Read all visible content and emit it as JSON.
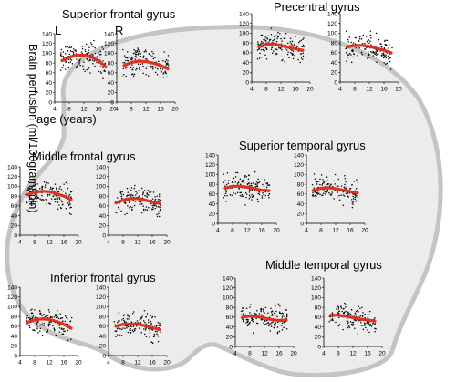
{
  "figure": {
    "ylabel": "Brain perfusion (ml/100gram/min)",
    "xlabel": "age (years)",
    "left_label": "L",
    "right_label": "R"
  },
  "colors": {
    "points": "#000000",
    "fit": "#e03020",
    "brain_fill": "#ececec",
    "brain_stroke": "#c4c4c4"
  },
  "chart_data": [
    {
      "type": "scatter",
      "region": "Superior frontal gyrus",
      "title": "Superior frontal gyrus",
      "xlim": [
        4,
        20
      ],
      "ylim": [
        0,
        140
      ],
      "xticks": [
        "4",
        "8",
        "12",
        "16",
        "20"
      ],
      "yticks": [
        "0",
        "20",
        "40",
        "60",
        "80",
        "100",
        "120",
        "140"
      ],
      "series": [
        {
          "hemisphere": "L",
          "fit": {
            "x": [
              6,
              8,
              10,
              12,
              14,
              16,
              18
            ],
            "y": [
              85,
              92,
              96,
              96,
              93,
              85,
              72
            ]
          }
        },
        {
          "hemisphere": "R",
          "fit": {
            "x": [
              6,
              8,
              10,
              12,
              14,
              16,
              18
            ],
            "y": [
              75,
              81,
              84,
              83,
              80,
              75,
              68
            ]
          }
        }
      ]
    },
    {
      "type": "scatter",
      "region": "Precentral gyrus",
      "title": "Precentral gyrus",
      "xlim": [
        4,
        20
      ],
      "ylim": [
        0,
        140
      ],
      "xticks": [
        "4",
        "8",
        "12",
        "16",
        "20"
      ],
      "yticks": [
        "0",
        "20",
        "40",
        "60",
        "80",
        "100",
        "120",
        "140"
      ],
      "series": [
        {
          "hemisphere": "L",
          "fit": {
            "x": [
              6,
              8,
              10,
              12,
              14,
              16,
              18
            ],
            "y": [
              72,
              77,
              78,
              75,
              71,
              68,
              65
            ]
          }
        },
        {
          "hemisphere": "R",
          "fit": {
            "x": [
              6,
              8,
              10,
              12,
              14,
              16,
              18
            ],
            "y": [
              72,
              75,
              75,
              73,
              69,
              65,
              60
            ]
          }
        }
      ]
    },
    {
      "type": "scatter",
      "region": "Middle frontal gyrus",
      "title": "Middle frontal gyrus",
      "xlim": [
        4,
        20
      ],
      "ylim": [
        0,
        140
      ],
      "xticks": [
        "4",
        "8",
        "12",
        "16",
        "20"
      ],
      "yticks": [
        "0",
        "20",
        "40",
        "60",
        "80",
        "100",
        "120",
        "140"
      ],
      "series": [
        {
          "hemisphere": "L",
          "fit": {
            "x": [
              6,
              8,
              10,
              12,
              14,
              16,
              18
            ],
            "y": [
              83,
              88,
              90,
              89,
              85,
              80,
              73
            ]
          }
        },
        {
          "hemisphere": "R",
          "fit": {
            "x": [
              6,
              8,
              10,
              12,
              14,
              16,
              18
            ],
            "y": [
              66,
              72,
              75,
              75,
              72,
              68,
              65
            ]
          }
        }
      ]
    },
    {
      "type": "scatter",
      "region": "Superior temporal gyrus",
      "title": "Superior temporal gyrus",
      "xlim": [
        4,
        20
      ],
      "ylim": [
        0,
        140
      ],
      "xticks": [
        "4",
        "8",
        "12",
        "16",
        "20"
      ],
      "yticks": [
        "0",
        "20",
        "40",
        "60",
        "80",
        "100",
        "120",
        "140"
      ],
      "series": [
        {
          "hemisphere": "L",
          "fit": {
            "x": [
              6,
              8,
              10,
              12,
              14,
              16,
              18
            ],
            "y": [
              72,
              76,
              76,
              74,
              71,
              68,
              67
            ]
          }
        },
        {
          "hemisphere": "R",
          "fit": {
            "x": [
              6,
              8,
              10,
              12,
              14,
              16,
              18
            ],
            "y": [
              68,
              72,
              73,
              71,
              68,
              65,
              62
            ]
          }
        }
      ]
    },
    {
      "type": "scatter",
      "region": "Inferior frontal gyrus",
      "title": "Inferior frontal gyrus",
      "xlim": [
        4,
        20
      ],
      "ylim": [
        0,
        140
      ],
      "xticks": [
        "4",
        "8",
        "12",
        "16",
        "20"
      ],
      "yticks": [
        "0",
        "20",
        "40",
        "60",
        "80",
        "100",
        "120",
        "140"
      ],
      "series": [
        {
          "hemisphere": "L",
          "fit": {
            "x": [
              6,
              8,
              10,
              12,
              14,
              16,
              18
            ],
            "y": [
              68,
              73,
              75,
              74,
              70,
              64,
              56
            ]
          }
        },
        {
          "hemisphere": "R",
          "fit": {
            "x": [
              6,
              8,
              10,
              12,
              14,
              16,
              18
            ],
            "y": [
              60,
              64,
              65,
              64,
              61,
              57,
              53
            ]
          }
        }
      ]
    },
    {
      "type": "scatter",
      "region": "Middle temporal gyrus",
      "title": "Middle temporal gyrus",
      "xlim": [
        4,
        20
      ],
      "ylim": [
        0,
        140
      ],
      "xticks": [
        "4",
        "8",
        "12",
        "16",
        "20"
      ],
      "yticks": [
        "0",
        "20",
        "40",
        "60",
        "80",
        "100",
        "120",
        "140"
      ],
      "series": [
        {
          "hemisphere": "L",
          "fit": {
            "x": [
              6,
              8,
              10,
              12,
              14,
              16,
              18
            ],
            "y": [
              60,
              62,
              61,
              58,
              55,
              53,
              54
            ]
          }
        },
        {
          "hemisphere": "R",
          "fit": {
            "x": [
              6,
              8,
              10,
              12,
              14,
              16,
              18
            ],
            "y": [
              64,
              64,
              62,
              59,
              56,
              54,
              52
            ]
          }
        }
      ]
    }
  ]
}
